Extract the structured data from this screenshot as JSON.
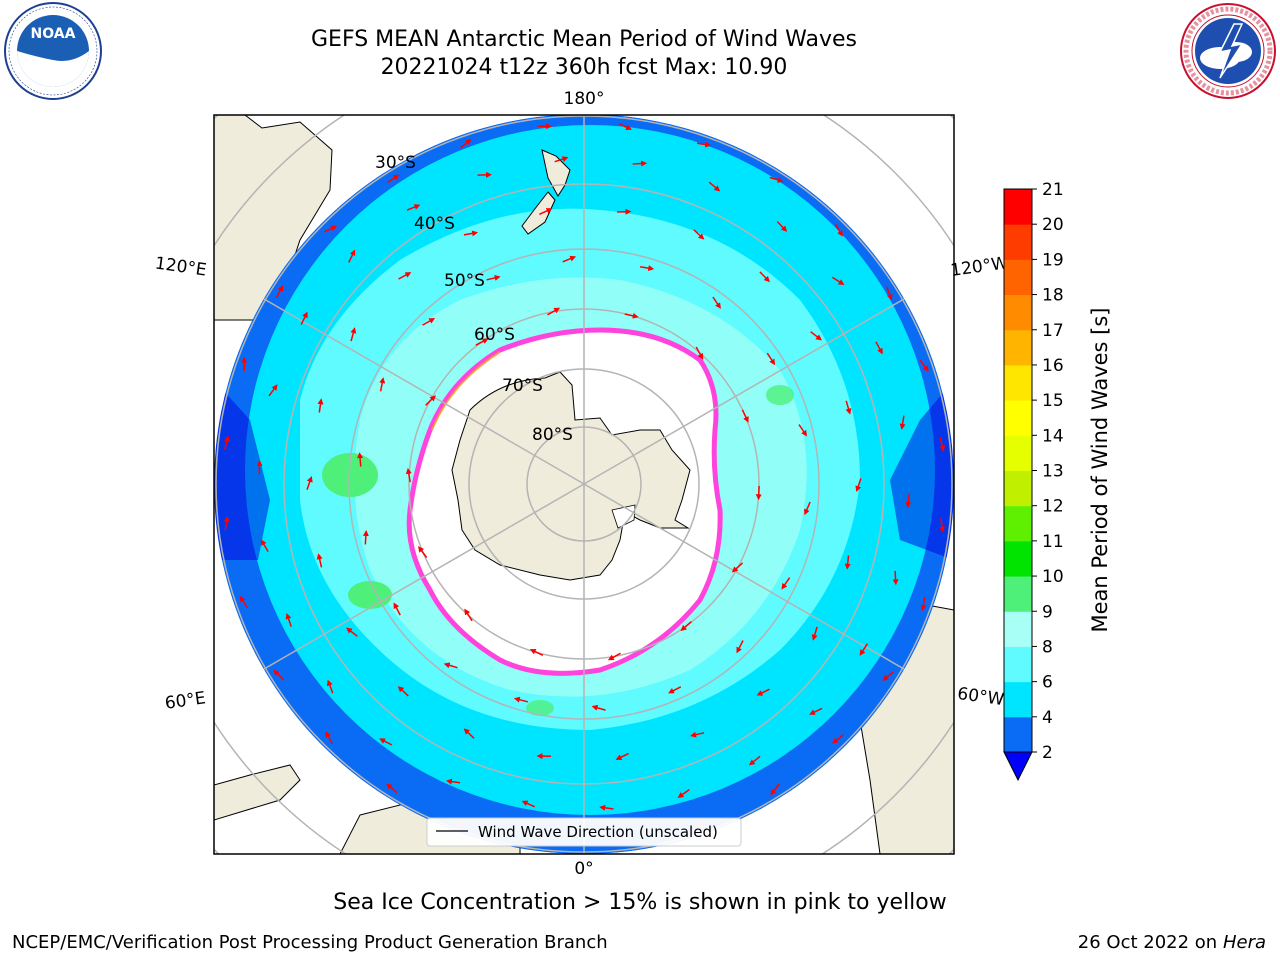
{
  "header": {
    "title_line1": "GEFS MEAN Antarctic Mean Period of Wind Waves",
    "title_line2": "20221024 t12z 360h fcst   Max: 10.90"
  },
  "logos": {
    "left": {
      "name": "noaa-logo",
      "text": "NOAA",
      "ring_text": "NATIONAL OCEANIC AND ATMOSPHERIC ADMINISTRATION · U.S. DEPARTMENT OF COMMERCE"
    },
    "right": {
      "name": "nws-logo",
      "ring_text": "NATIONAL WEATHER SERVICE"
    }
  },
  "map": {
    "projection": "south-polar-stereographic",
    "longitude_labels": [
      "180°",
      "120°E",
      "120°W",
      "60°E",
      "60°W",
      "0°"
    ],
    "latitude_labels": [
      "30°S",
      "40°S",
      "50°S",
      "60°S",
      "70°S",
      "80°S"
    ],
    "legend_label": "Wind Wave Direction (unscaled)",
    "colors": {
      "ocean_2_4": "#0a6cf5",
      "ocean_4_6": "#00e5ff",
      "ocean_6_8": "#5ffbff",
      "ocean_8_9": "#a8fff5",
      "ocean_9_10": "#4ef07a",
      "land": "#efecdc",
      "ice_edge": "#ff44dd",
      "arrow": "#ff0000",
      "grid": "#b4b4b4"
    }
  },
  "colorbar": {
    "label": "Mean Period of Wind Waves [s]",
    "ticks": [
      "2",
      "4",
      "6",
      "8",
      "9",
      "10",
      "11",
      "12",
      "13",
      "14",
      "15",
      "16",
      "17",
      "18",
      "19",
      "20",
      "21"
    ],
    "colors": [
      "#0a6cf5",
      "#00e5ff",
      "#5ffbff",
      "#a8fff5",
      "#4ef07a",
      "#00e400",
      "#5ef000",
      "#c0f000",
      "#e5ff00",
      "#ffff00",
      "#ffe600",
      "#ffb400",
      "#ff8c00",
      "#ff6400",
      "#ff3c00",
      "#ff0000"
    ],
    "extend_color": "#0000ff"
  },
  "caption": "Sea Ice Concentration > 15% is shown in pink to yellow",
  "footer": {
    "left": "NCEP/EMC/Verification Post Processing Product Generation Branch",
    "right_date": "26 Oct 2022 on ",
    "right_host": "Hera"
  }
}
